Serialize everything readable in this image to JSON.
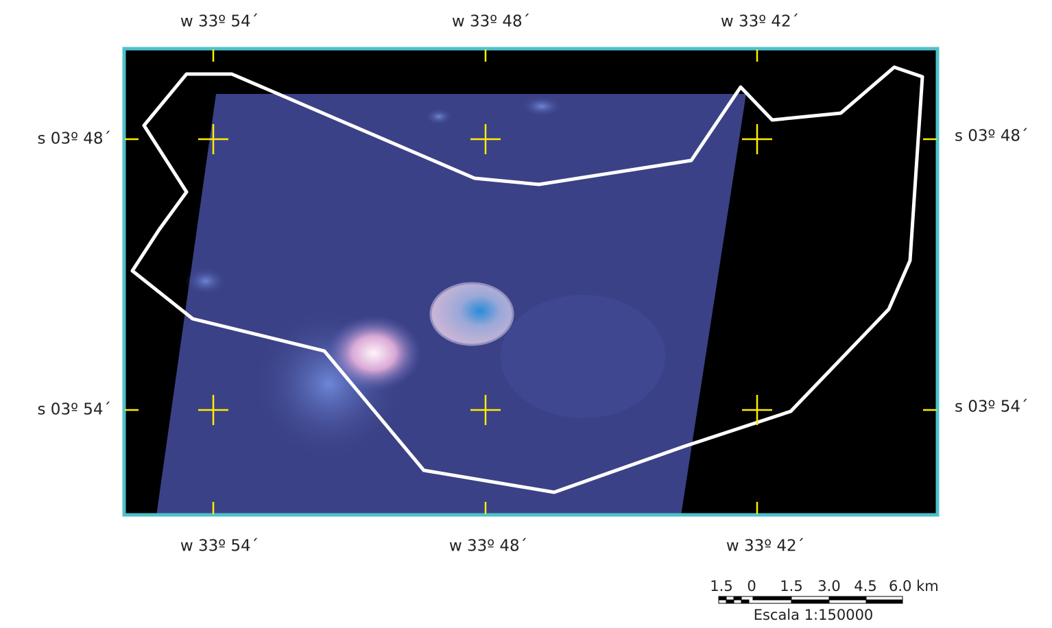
{
  "coordinates": {
    "top": [
      "w 33º 54´",
      "w 33º 48´",
      "w 33º 42´"
    ],
    "bottom": [
      "w 33º 54´",
      "w 33º 48´",
      "w 33º 42´"
    ],
    "left": [
      "s 03º 48´",
      "s 03º 54´"
    ],
    "right": [
      "s 03º 48´",
      "s 03º 54´"
    ]
  },
  "scale_bar": {
    "labels": [
      "1.5",
      "0",
      "1.5",
      "3.0",
      "4.5",
      "6.0 km"
    ],
    "caption": "Escala 1:150000"
  }
}
